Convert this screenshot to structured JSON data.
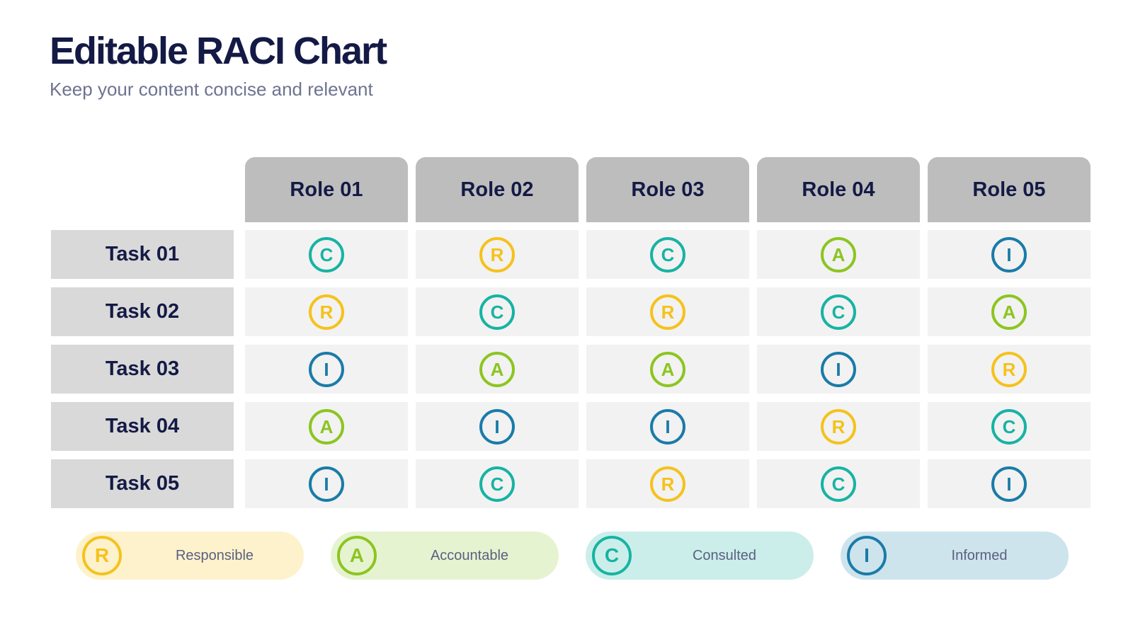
{
  "title": "Editable RACI Chart",
  "subtitle": "Keep your content concise and relevant",
  "roles": [
    "Role 01",
    "Role 02",
    "Role 03",
    "Role 04",
    "Role 05"
  ],
  "tasks": [
    {
      "label": "Task 01",
      "cells": [
        "C",
        "R",
        "C",
        "A",
        "I"
      ]
    },
    {
      "label": "Task 02",
      "cells": [
        "R",
        "C",
        "R",
        "C",
        "A"
      ]
    },
    {
      "label": "Task 03",
      "cells": [
        "I",
        "A",
        "A",
        "I",
        "R"
      ]
    },
    {
      "label": "Task 04",
      "cells": [
        "A",
        "I",
        "I",
        "R",
        "C"
      ]
    },
    {
      "label": "Task 05",
      "cells": [
        "I",
        "C",
        "R",
        "C",
        "I"
      ]
    }
  ],
  "legend": [
    {
      "letter": "R",
      "label": "Responsible",
      "color": "#f5c21b",
      "bg": "#fdf2cc"
    },
    {
      "letter": "A",
      "label": "Accountable",
      "color": "#8cc520",
      "bg": "#e6f3d0"
    },
    {
      "letter": "C",
      "label": "Consulted",
      "color": "#17b3a3",
      "bg": "#cbeeea"
    },
    {
      "letter": "I",
      "label": "Informed",
      "color": "#1a7ba8",
      "bg": "#cde4ed"
    }
  ]
}
